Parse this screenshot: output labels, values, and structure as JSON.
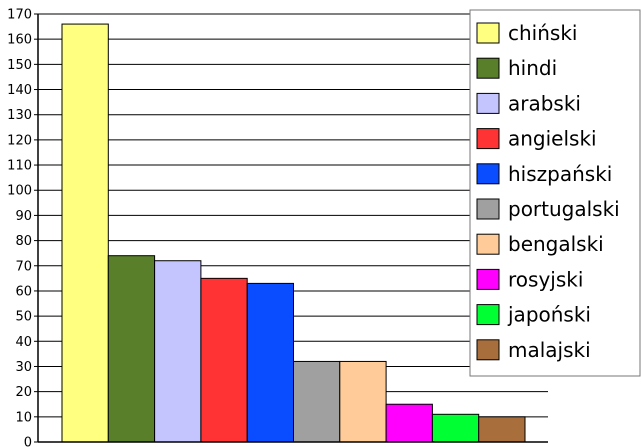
{
  "chart_data": {
    "type": "bar",
    "title": "",
    "xlabel": "",
    "ylabel": "",
    "ylim": [
      0,
      170
    ],
    "yticks": [
      0,
      10,
      20,
      30,
      40,
      50,
      60,
      70,
      80,
      90,
      100,
      110,
      120,
      130,
      140,
      150,
      160,
      170
    ],
    "grid": true,
    "legend_position": "top-right",
    "categories": [
      "chiński",
      "hindi",
      "arabski",
      "angielski",
      "hiszpański",
      "portugalski",
      "bengalski",
      "rosyjski",
      "japoński",
      "malajski"
    ],
    "values": [
      166,
      74,
      72,
      65,
      63,
      32,
      32,
      15,
      11,
      10
    ],
    "colors": [
      "#ffff80",
      "#5a7f2a",
      "#c4c4ff",
      "#ff3333",
      "#0a4cff",
      "#a0a0a0",
      "#ffcc99",
      "#ff00ff",
      "#00ff33",
      "#a86f3d"
    ]
  }
}
